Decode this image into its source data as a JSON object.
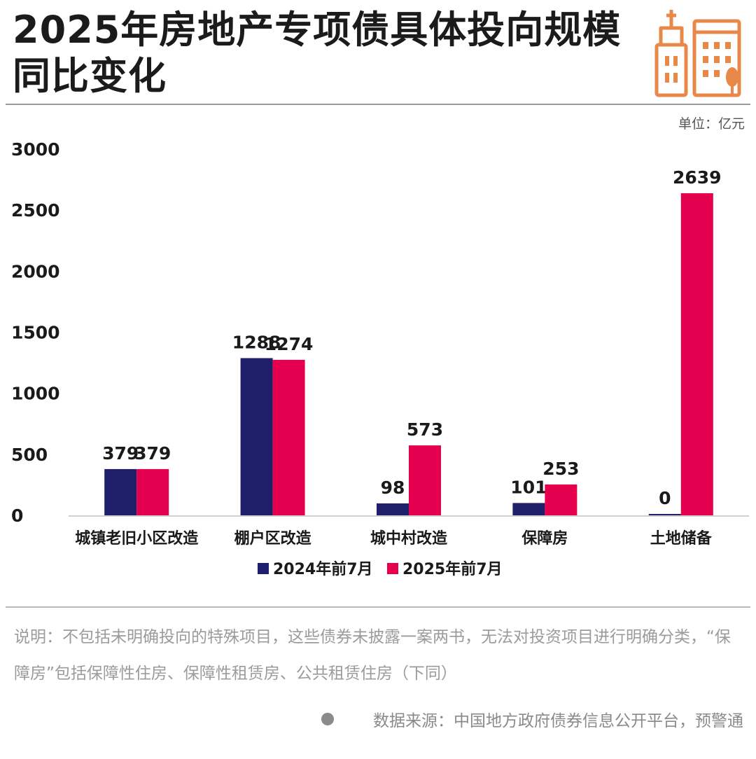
{
  "header": {
    "title": "2025年房地产专项债具体投向规模同比变化",
    "logo_icon": "buildings-logo-icon"
  },
  "unit_label": "单位：亿元",
  "chart_data": {
    "type": "bar",
    "title": "2025年房地产专项债具体投向规模同比变化",
    "xlabel": "",
    "ylabel": "",
    "ylim": [
      0,
      3000
    ],
    "yticks": [
      0,
      500,
      1000,
      1500,
      2000,
      2500,
      3000
    ],
    "grid": false,
    "legend_position": "bottom-center",
    "categories": [
      "城镇老旧小区改造",
      "棚户区改造",
      "城中村改造",
      "保障房",
      "土地储备"
    ],
    "series": [
      {
        "name": "2024年前7月",
        "color": "#1f1f6b",
        "values": [
          379,
          1288,
          98,
          101,
          0
        ]
      },
      {
        "name": "2025年前7月",
        "color": "#e4004f",
        "values": [
          379,
          1274,
          573,
          253,
          2639
        ]
      }
    ]
  },
  "footer": {
    "note": "说明：不包括未明确投向的特殊项目，这些债券未披露一案两书，无法对投资项目进行明确分类，“保障房”包括保障性住房、保障性租赁房、公共租赁住房（下同）",
    "source": "数据来源：中国地方政府债券信息公开平台，预警通"
  }
}
